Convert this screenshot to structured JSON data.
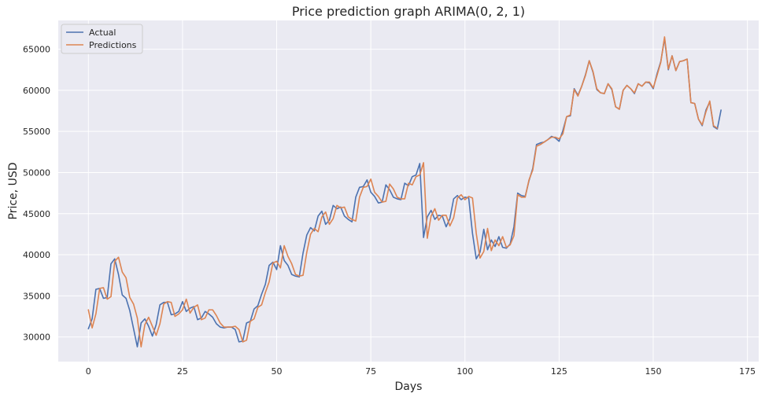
{
  "chart_data": {
    "type": "line",
    "title": "Price prediction graph ARIMA(0, 2, 1)",
    "xlabel": "Days",
    "ylabel": "Price, USD",
    "xlim": [
      -8,
      178
    ],
    "ylim": [
      27000,
      68500
    ],
    "xticks": [
      0,
      25,
      50,
      75,
      100,
      125,
      150,
      175
    ],
    "yticks": [
      30000,
      35000,
      40000,
      45000,
      50000,
      55000,
      60000,
      65000
    ],
    "grid": true,
    "legend_position": "top-left",
    "colors": {
      "background": "#eaeaf2",
      "grid": "#ffffff",
      "actual": "#4c72b0",
      "predictions": "#dd8452"
    },
    "series": [
      {
        "name": "Actual",
        "color": "#4c72b0",
        "values": [
          31000,
          32200,
          35800,
          35900,
          34700,
          34800,
          38900,
          39500,
          37600,
          35100,
          34700,
          33200,
          31000,
          28800,
          31700,
          32200,
          31300,
          30100,
          31500,
          33900,
          34200,
          34200,
          32700,
          32800,
          33100,
          34300,
          33100,
          33500,
          33700,
          32100,
          32300,
          33100,
          32800,
          32400,
          31600,
          31200,
          31100,
          31200,
          31200,
          30900,
          29400,
          29500,
          31700,
          31900,
          33400,
          33800,
          35200,
          36400,
          38700,
          39100,
          38200,
          41100,
          39300,
          38700,
          37600,
          37400,
          37300,
          40200,
          42400,
          43300,
          42900,
          44700,
          45300,
          43700,
          44200,
          46000,
          45600,
          45800,
          44700,
          44300,
          44000,
          47000,
          48200,
          48300,
          49100,
          47600,
          47100,
          46300,
          46400,
          48500,
          47900,
          47000,
          46800,
          46700,
          48700,
          48400,
          49500,
          49700,
          51100,
          42100,
          44600,
          45400,
          44300,
          44800,
          44700,
          43400,
          44400,
          46800,
          47200,
          46700,
          47000,
          46900,
          42600,
          39500,
          40300,
          43100,
          40600,
          41800,
          41000,
          42200,
          40900,
          40800,
          41300,
          43400,
          47500,
          47200,
          47100,
          49000,
          50500,
          53400,
          53600,
          53700,
          54000,
          54400,
          54200,
          53800,
          55100,
          56800,
          56900,
          60200,
          59400,
          60500,
          61900,
          63600,
          62200,
          60100,
          59700,
          59600,
          60800,
          60100,
          58000,
          57700,
          60000,
          60600,
          60200,
          59600,
          60800,
          60500,
          61000,
          60900,
          60200,
          62000,
          63500,
          66300,
          62500,
          64200,
          62400,
          63500,
          63600,
          63800,
          58500,
          58400,
          56500,
          55700,
          57600,
          58600,
          55600,
          55300,
          57600
        ]
      },
      {
        "name": "Predictions",
        "color": "#dd8452",
        "values": [
          33300,
          31100,
          32800,
          35900,
          36000,
          34600,
          34900,
          39200,
          39700,
          37900,
          37200,
          34800,
          34000,
          32300,
          28800,
          31500,
          32400,
          31300,
          30200,
          31600,
          34000,
          34300,
          34200,
          32500,
          32800,
          33300,
          34600,
          32900,
          33600,
          33900,
          32100,
          32300,
          33300,
          33300,
          32600,
          31700,
          31200,
          31200,
          31200,
          31300,
          30900,
          29400,
          29600,
          31900,
          32200,
          33600,
          33900,
          35400,
          36700,
          39000,
          39200,
          38400,
          41100,
          39800,
          38900,
          37600,
          37400,
          37500,
          40300,
          42500,
          43200,
          42800,
          44600,
          45200,
          43700,
          44400,
          46000,
          45700,
          45800,
          44600,
          44300,
          44100,
          47000,
          48200,
          48300,
          49200,
          47600,
          47100,
          46400,
          46500,
          48600,
          48000,
          47000,
          46800,
          46800,
          48700,
          48500,
          49500,
          49700,
          51200,
          42000,
          44700,
          45600,
          44200,
          44800,
          44800,
          43500,
          44500,
          46900,
          47300,
          46700,
          47100,
          46900,
          42600,
          39600,
          40400,
          43200,
          40500,
          41800,
          41100,
          42200,
          40900,
          41200,
          42300,
          47300,
          47000,
          47000,
          49100,
          50300,
          53200,
          53400,
          53700,
          54000,
          54300,
          54300,
          54100,
          54700,
          56800,
          57000,
          60100,
          59300,
          60500,
          61800,
          63600,
          62300,
          60200,
          59700,
          59600,
          60800,
          60200,
          58000,
          57700,
          60000,
          60600,
          60200,
          59700,
          60800,
          60500,
          61000,
          61000,
          60300,
          61800,
          63400,
          66500,
          62600,
          64200,
          62400,
          63500,
          63600,
          63800,
          58500,
          58400,
          56500,
          55800,
          57400,
          58700,
          55700,
          55400
        ]
      }
    ]
  }
}
